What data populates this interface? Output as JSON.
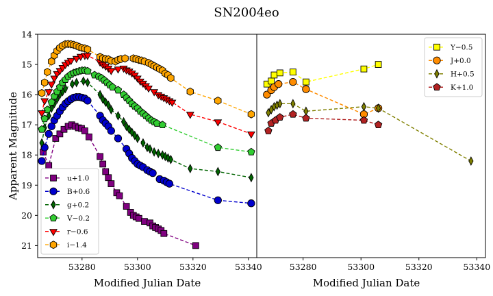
{
  "figure_title": "SN2004eo",
  "chart_data": [
    {
      "type": "line",
      "panel": "left",
      "xlabel": "Modified Julian Date",
      "ylabel": "Apparent Magnitude",
      "xlim": [
        53264,
        53343
      ],
      "ylim": [
        21.4,
        14.0
      ],
      "y_inverted": true,
      "xticks": [
        53280,
        53300,
        53320,
        53340
      ],
      "yticks": [
        14,
        15,
        16,
        17,
        18,
        19,
        20,
        21
      ],
      "grid": false,
      "legend": "bottom-left",
      "series": [
        {
          "name": "u+1.0",
          "color": "#800080",
          "marker": "square",
          "x": [
            53266,
            53268,
            53270.5,
            53272,
            53273.5,
            53275,
            53276.3,
            53277.5,
            53278.7,
            53279.8,
            53281,
            53282.5,
            53286.5,
            53287.5,
            53288.5,
            53289.5,
            53290.5,
            53292.5,
            53293.5,
            53296,
            53297.5,
            53298.5,
            53299.5,
            53300.5,
            53302.5,
            53304.5,
            53305.5,
            53306.5,
            53307.5,
            53308.5,
            53309.5,
            53321
          ],
          "y": [
            17.9,
            18.35,
            17.45,
            17.3,
            17.15,
            17.05,
            17.0,
            17.05,
            17.1,
            17.12,
            17.2,
            17.4,
            18.05,
            18.3,
            18.55,
            18.75,
            18.95,
            19.25,
            19.35,
            19.7,
            19.9,
            20.0,
            20.05,
            20.1,
            20.2,
            20.25,
            20.35,
            20.4,
            20.45,
            20.5,
            20.6,
            21.0
          ]
        },
        {
          "name": "B+0.6",
          "color": "#0000CD",
          "marker": "circle",
          "x": [
            53265.5,
            53266.5,
            53268,
            53269,
            53270,
            53271,
            53272,
            53273,
            53274,
            53275,
            53276,
            53277,
            53278,
            53279,
            53280,
            53281,
            53282,
            53286.5,
            53287.5,
            53288.5,
            53289.5,
            53290.5,
            53293,
            53296,
            53297,
            53298,
            53299,
            53300,
            53301,
            53302,
            53303.5,
            53304.5,
            53305.5,
            53308,
            53309.5,
            53310.5,
            53311.5,
            53329,
            53341
          ],
          "y": [
            18.2,
            17.75,
            17.3,
            17.05,
            16.85,
            16.7,
            16.55,
            16.42,
            16.3,
            16.22,
            16.15,
            16.1,
            16.08,
            16.08,
            16.1,
            16.13,
            16.2,
            16.7,
            16.85,
            16.95,
            17.05,
            17.2,
            17.45,
            17.8,
            17.95,
            18.1,
            18.2,
            18.3,
            18.35,
            18.4,
            18.5,
            18.55,
            18.6,
            18.8,
            18.85,
            18.9,
            18.95,
            19.5,
            19.6
          ]
        },
        {
          "name": "g+0.2",
          "color": "#006400",
          "marker": "thin_diamond",
          "x": [
            53265.5,
            53266.5,
            53268,
            53269,
            53270,
            53271,
            53272,
            53273,
            53274,
            53276.5,
            53278,
            53280.5,
            53282,
            53286.5,
            53287.5,
            53288.5,
            53289.5,
            53290.5,
            53293,
            53295,
            53296,
            53297,
            53298,
            53299,
            53300,
            53302,
            53303.5,
            53304.5,
            53306,
            53307.5,
            53309,
            53310,
            53311,
            53312,
            53319,
            53329,
            53341
          ],
          "y": [
            17.6,
            17.1,
            16.7,
            16.45,
            16.3,
            16.15,
            16.0,
            15.9,
            15.8,
            15.65,
            15.6,
            15.55,
            15.6,
            16.0,
            16.15,
            16.25,
            16.35,
            16.5,
            16.7,
            16.9,
            17.05,
            17.15,
            17.25,
            17.35,
            17.45,
            17.6,
            17.75,
            17.8,
            17.9,
            17.95,
            18.0,
            18.05,
            18.1,
            18.15,
            18.45,
            18.55,
            18.75
          ]
        },
        {
          "name": "V−0.2",
          "color": "#32CD32",
          "marker": "pentagon",
          "x": [
            53265.5,
            53266.5,
            53267.5,
            53269,
            53270,
            53271,
            53272,
            53273,
            53274,
            53275,
            53276,
            53277,
            53278,
            53279,
            53280,
            53281,
            53282,
            53284.5,
            53286,
            53287,
            53288,
            53289,
            53290,
            53291,
            53293,
            53295,
            53296,
            53297,
            53298,
            53299,
            53300,
            53301,
            53302,
            53303,
            53304,
            53305,
            53306,
            53307,
            53309,
            53329,
            53341
          ],
          "y": [
            17.15,
            16.8,
            16.5,
            16.25,
            16.05,
            15.9,
            15.75,
            15.6,
            15.5,
            15.4,
            15.33,
            15.28,
            15.25,
            15.22,
            15.2,
            15.2,
            15.22,
            15.35,
            15.4,
            15.45,
            15.52,
            15.6,
            15.68,
            15.75,
            15.85,
            16.0,
            16.1,
            16.2,
            16.3,
            16.38,
            16.45,
            16.55,
            16.62,
            16.7,
            16.78,
            16.85,
            16.9,
            16.95,
            17.0,
            17.75,
            17.9
          ]
        },
        {
          "name": "r−0.6",
          "color": "#FF0000",
          "marker": "triangle_down",
          "x": [
            53265.5,
            53266.5,
            53268,
            53269,
            53270,
            53271,
            53272,
            53273,
            53274,
            53275,
            53276,
            53278,
            53279.5,
            53281,
            53282,
            53286.5,
            53287.5,
            53288.5,
            53289.5,
            53290.5,
            53293,
            53295,
            53296,
            53297,
            53298,
            53299,
            53300,
            53301,
            53302,
            53303,
            53304,
            53306,
            53307.5,
            53308.5,
            53309.5,
            53310.5,
            53311.5,
            53312.5,
            53319,
            53329,
            53341
          ],
          "y": [
            16.6,
            16.2,
            15.9,
            15.65,
            15.45,
            15.3,
            15.2,
            15.1,
            15.0,
            14.93,
            14.87,
            14.8,
            14.73,
            14.7,
            14.7,
            14.92,
            15.0,
            15.05,
            15.12,
            15.2,
            15.15,
            15.12,
            15.18,
            15.22,
            15.28,
            15.35,
            15.45,
            15.55,
            15.62,
            15.7,
            15.78,
            15.9,
            16.0,
            16.05,
            16.1,
            16.15,
            16.2,
            16.25,
            16.65,
            16.9,
            17.3
          ]
        },
        {
          "name": "i−1.4",
          "color": "#FFA500",
          "marker": "hexagon",
          "x": [
            53265.5,
            53266.5,
            53267.5,
            53269,
            53270,
            53271,
            53272,
            53273,
            53274,
            53275,
            53276,
            53277,
            53278,
            53279,
            53280,
            53281,
            53282,
            53286.5,
            53287.5,
            53288.5,
            53289.5,
            53290.5,
            53292,
            53293,
            53294,
            53295.5,
            53298.5,
            53299.5,
            53300.5,
            53301.5,
            53302.5,
            53304,
            53305,
            53306,
            53307,
            53308,
            53309,
            53310,
            53311,
            53312,
            53319,
            53329,
            53341
          ],
          "y": [
            15.95,
            15.6,
            15.25,
            14.9,
            14.7,
            14.55,
            14.45,
            14.38,
            14.33,
            14.32,
            14.33,
            14.35,
            14.38,
            14.42,
            14.45,
            14.47,
            14.5,
            14.75,
            14.8,
            14.82,
            14.83,
            14.88,
            14.9,
            14.85,
            14.82,
            14.8,
            14.8,
            14.82,
            14.85,
            14.87,
            14.9,
            14.95,
            15.0,
            15.05,
            15.1,
            15.15,
            15.2,
            15.3,
            15.35,
            15.45,
            15.9,
            16.2,
            16.65
          ]
        }
      ]
    },
    {
      "type": "line",
      "panel": "right",
      "xlabel": "Modified Julian Date",
      "ylabel": "",
      "xlim": [
        53264,
        53343
      ],
      "ylim": [
        21.4,
        14.0
      ],
      "y_inverted": true,
      "xticks": [
        53280,
        53300,
        53320,
        53340
      ],
      "yticks": [],
      "grid": false,
      "legend": "top-right",
      "series": [
        {
          "name": "Y−0.5",
          "color": "#FFFF00",
          "marker": "square",
          "x": [
            53267.5,
            53269,
            53270,
            53272,
            53276.5,
            53281,
            53301,
            53306
          ],
          "y": [
            15.65,
            15.55,
            15.35,
            15.28,
            15.25,
            15.58,
            15.15,
            15.0
          ]
        },
        {
          "name": "J+0.0",
          "color": "#FF8C00",
          "marker": "circle",
          "x": [
            53267.5,
            53269,
            53270,
            53271.5,
            53276.5,
            53281,
            53301,
            53306
          ],
          "y": [
            16.0,
            15.85,
            15.75,
            15.65,
            15.58,
            15.82,
            16.65,
            16.45
          ]
        },
        {
          "name": "H+0.5",
          "color": "#808000",
          "marker": "thin_diamond",
          "x": [
            53268,
            53269,
            53270,
            53271,
            53272,
            53276.5,
            53281,
            53301,
            53306,
            53338
          ],
          "y": [
            16.6,
            16.5,
            16.4,
            16.35,
            16.3,
            16.3,
            16.55,
            16.4,
            16.45,
            18.2
          ]
        },
        {
          "name": "K+1.0",
          "color": "#B22222",
          "marker": "pentagon",
          "x": [
            53268,
            53269,
            53270.5,
            53272,
            53276.5,
            53281,
            53301,
            53306
          ],
          "y": [
            17.2,
            16.95,
            16.85,
            16.75,
            16.65,
            16.78,
            16.85,
            17.0
          ]
        }
      ]
    }
  ]
}
